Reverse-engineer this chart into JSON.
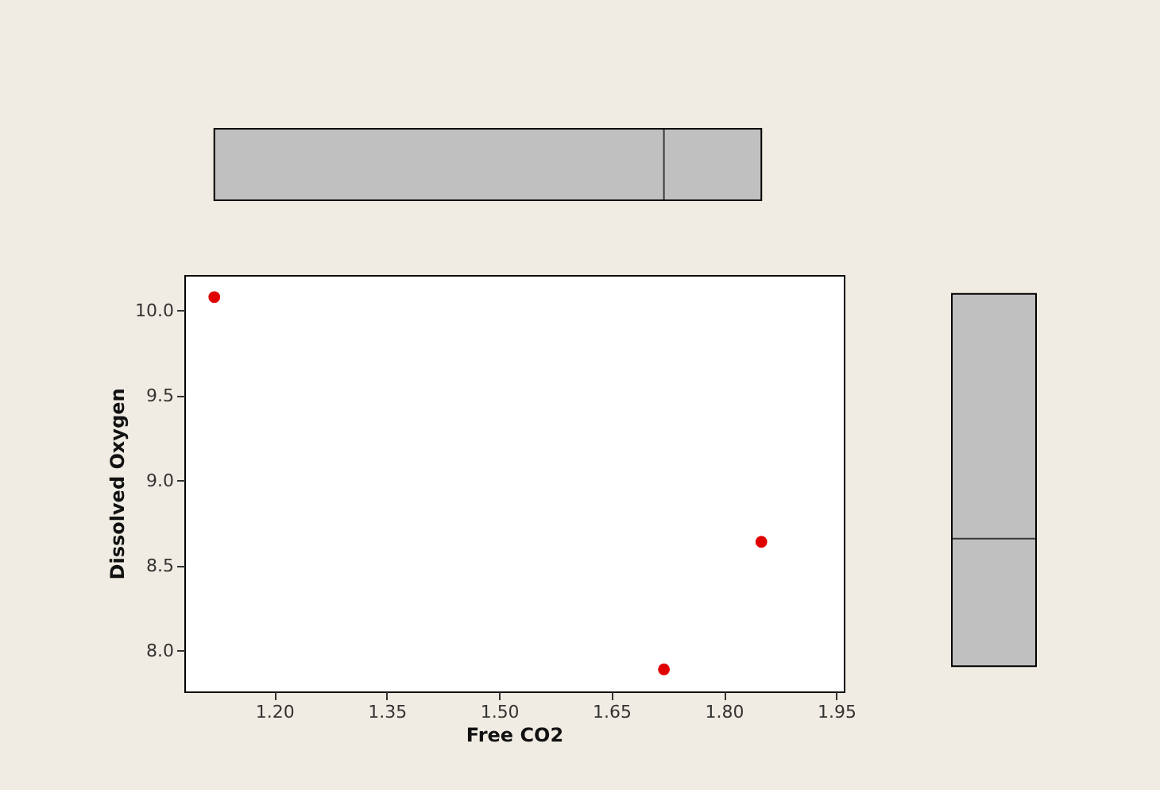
{
  "chart_data": {
    "type": "scatter",
    "xlabel": "Free CO2",
    "ylabel": "Dissolved Oxygen",
    "marker": "circle",
    "xlim": [
      1.08,
      1.96
    ],
    "ylim": [
      7.76,
      10.21
    ],
    "xticks": [
      {
        "value": 1.2,
        "label": "1.20"
      },
      {
        "value": 1.35,
        "label": "1.35"
      },
      {
        "value": 1.5,
        "label": "1.50"
      },
      {
        "value": 1.65,
        "label": "1.65"
      },
      {
        "value": 1.8,
        "label": "1.80"
      },
      {
        "value": 1.95,
        "label": "1.95"
      }
    ],
    "yticks": [
      {
        "value": 8,
        "label": "8.0"
      },
      {
        "value": 8.5,
        "label": "8.5"
      },
      {
        "value": 9,
        "label": "9.0"
      },
      {
        "value": 9.5,
        "label": "9.5"
      },
      {
        "value": 10,
        "label": "10.0"
      }
    ],
    "x": [
      1.12,
      1.72,
      1.85
    ],
    "series": [
      {
        "color": "#e00000",
        "values": [
          10.08,
          7.89,
          8.64
        ]
      }
    ]
  }
}
